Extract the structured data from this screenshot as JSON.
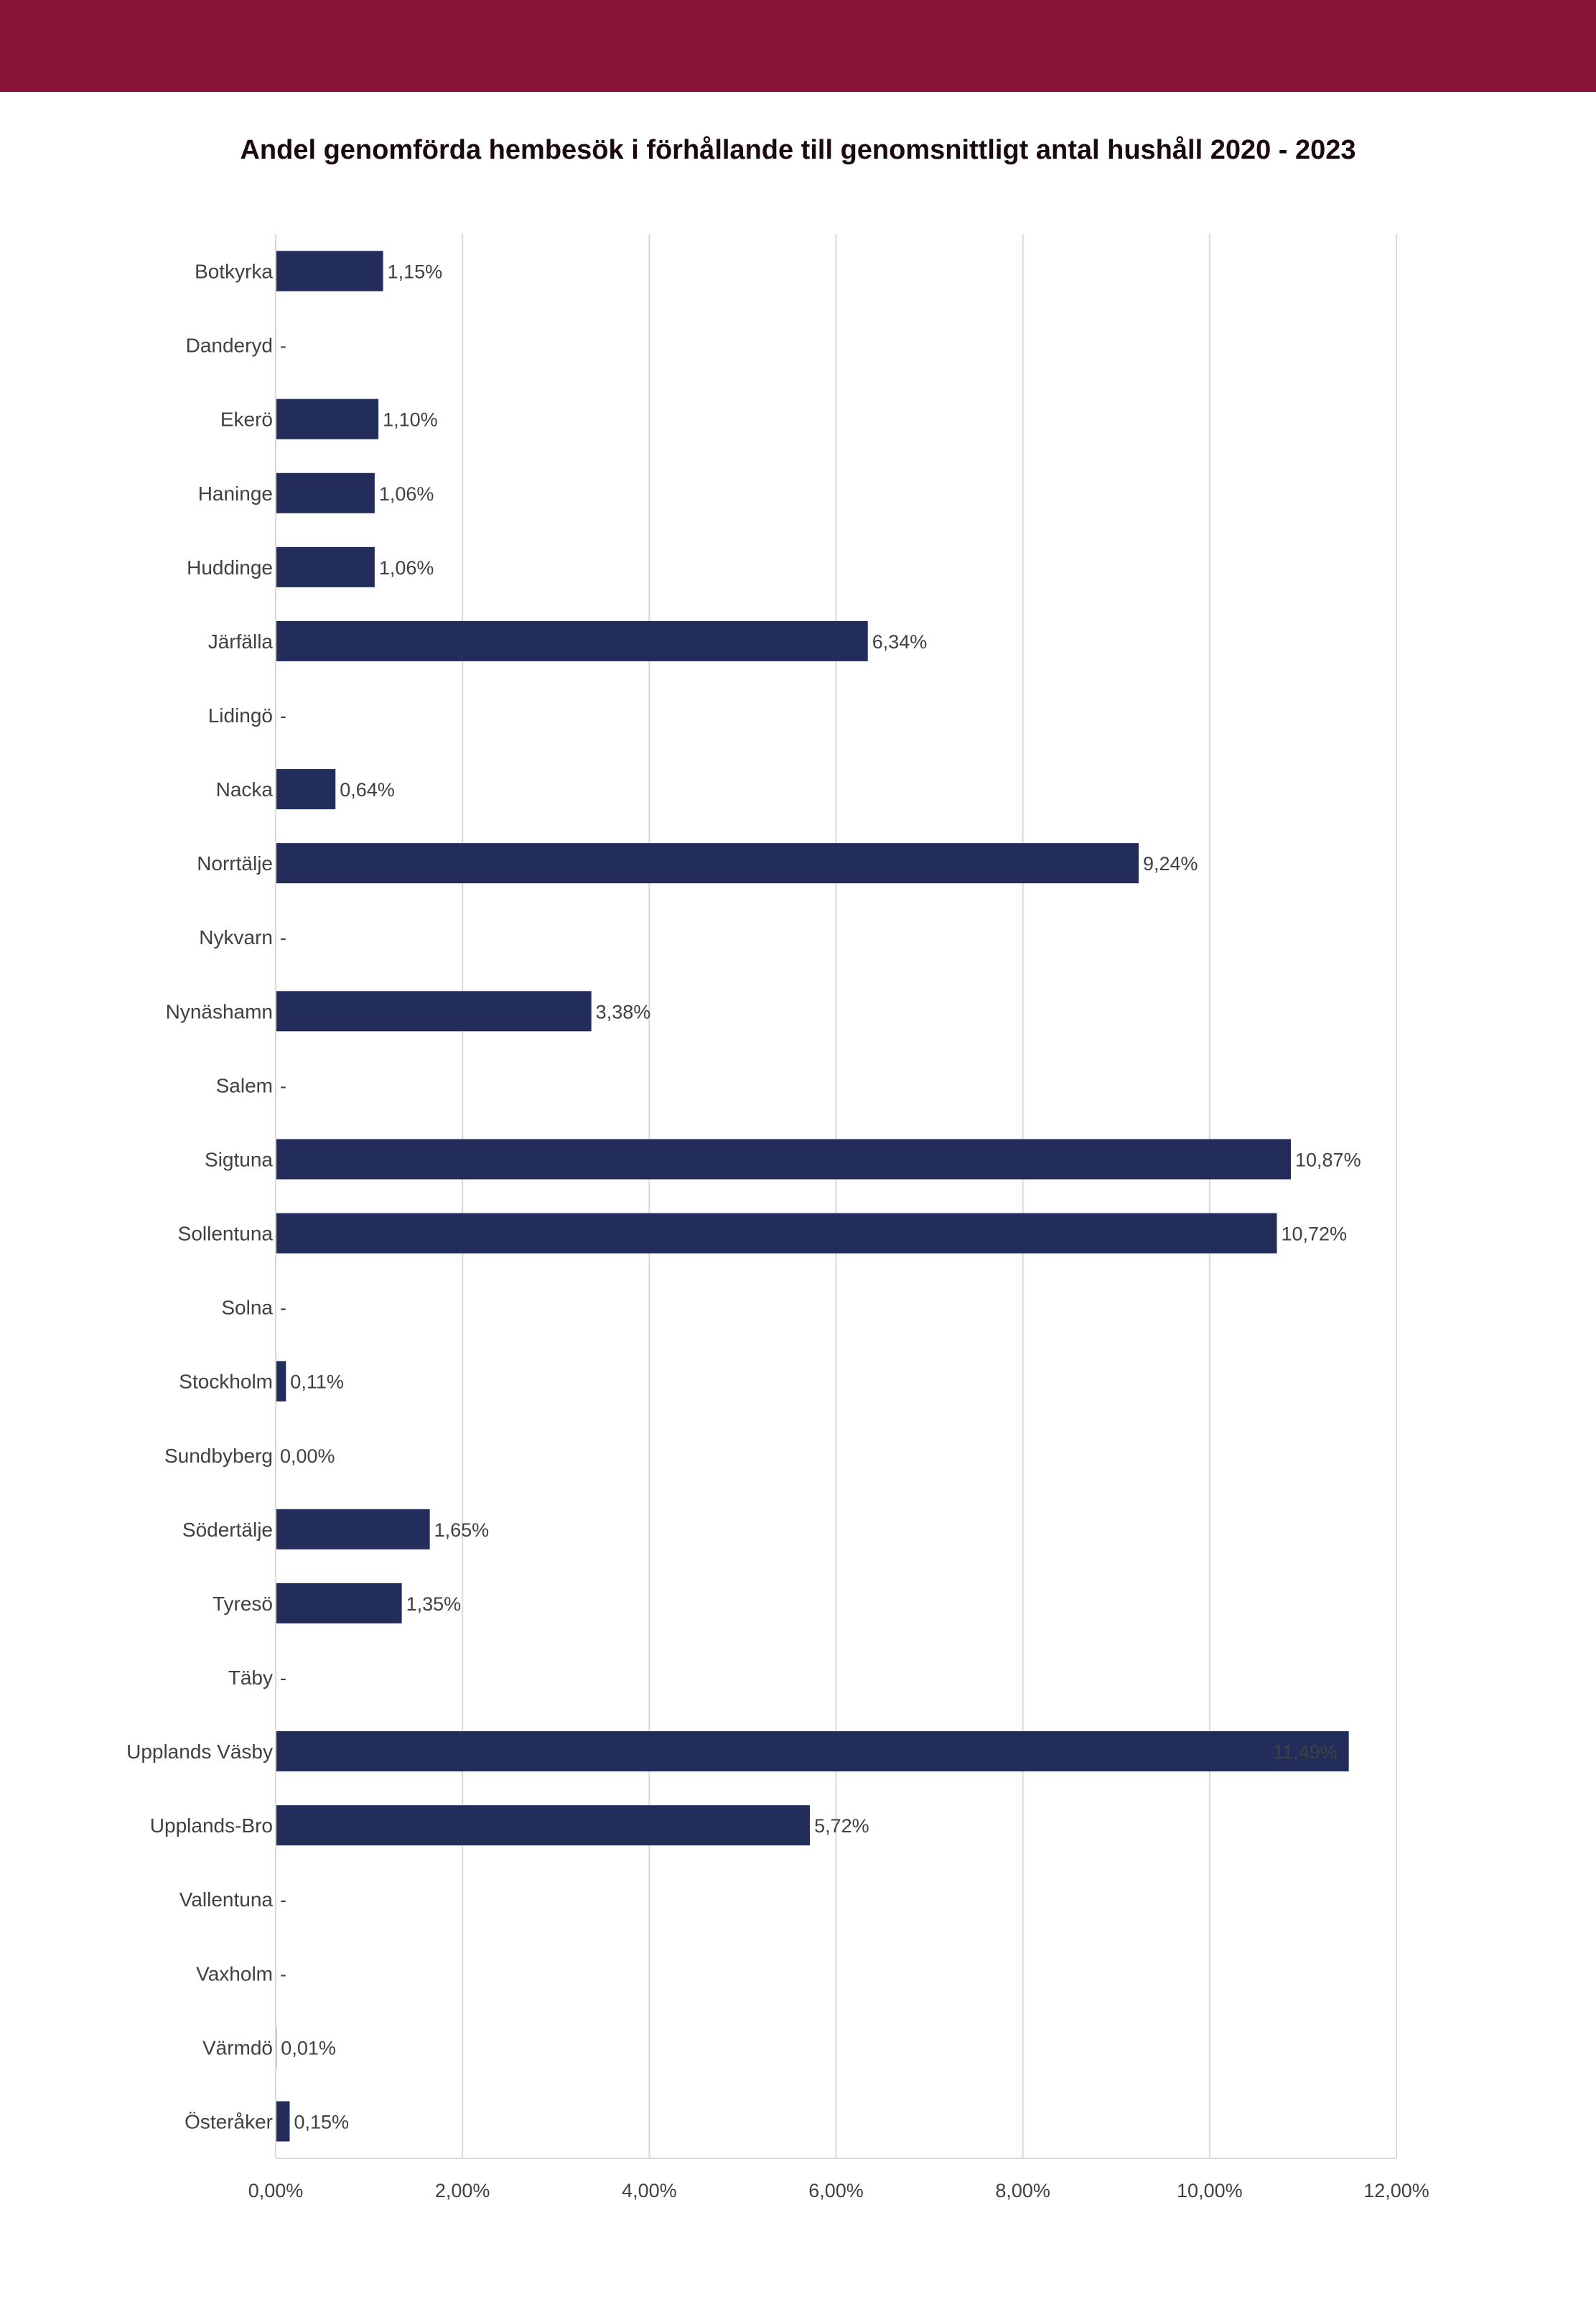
{
  "header": {
    "band_color": "#8B1538"
  },
  "chart_data": {
    "type": "bar",
    "orientation": "horizontal",
    "title": "Andel genomförda hembesök i förhållande till genomsnittligt antal hushåll 2020 - 2023",
    "bar_color": "#232D5C",
    "grid": true,
    "xlim": [
      0,
      12
    ],
    "x_ticks": [
      0,
      2,
      4,
      6,
      8,
      10,
      12
    ],
    "x_tick_labels": [
      "0,00%",
      "2,00%",
      "4,00%",
      "6,00%",
      "8,00%",
      "10,00%",
      "12,00%"
    ],
    "categories": [
      "Botkyrka",
      "Danderyd",
      "Ekerö",
      "Haninge",
      "Huddinge",
      "Järfälla",
      "Lidingö",
      "Nacka",
      "Norrtälje",
      "Nykvarn",
      "Nynäshamn",
      "Salem",
      "Sigtuna",
      "Sollentuna",
      "Solna",
      "Stockholm",
      "Sundbyberg",
      "Södertälje",
      "Tyresö",
      "Täby",
      "Upplands Väsby",
      "Upplands-Bro",
      "Vallentuna",
      "Vaxholm",
      "Värmdö",
      "Österåker"
    ],
    "values": [
      1.15,
      null,
      1.1,
      1.06,
      1.06,
      6.34,
      null,
      0.64,
      9.24,
      null,
      3.38,
      null,
      10.87,
      10.72,
      null,
      0.11,
      0.0,
      1.65,
      1.35,
      null,
      11.49,
      5.72,
      null,
      null,
      0.01,
      0.15
    ],
    "data_labels": [
      "1,15%",
      "-",
      "1,10%",
      "1,06%",
      "1,06%",
      "6,34%",
      "-",
      "0,64%",
      "9,24%",
      "-",
      "3,38%",
      "-",
      "10,87%",
      "10,72%",
      "-",
      "0,11%",
      "0,00%",
      "1,65%",
      "1,35%",
      "-",
      "11,49%",
      "5,72%",
      "-",
      "-",
      "0,01%",
      "0,15%"
    ]
  }
}
